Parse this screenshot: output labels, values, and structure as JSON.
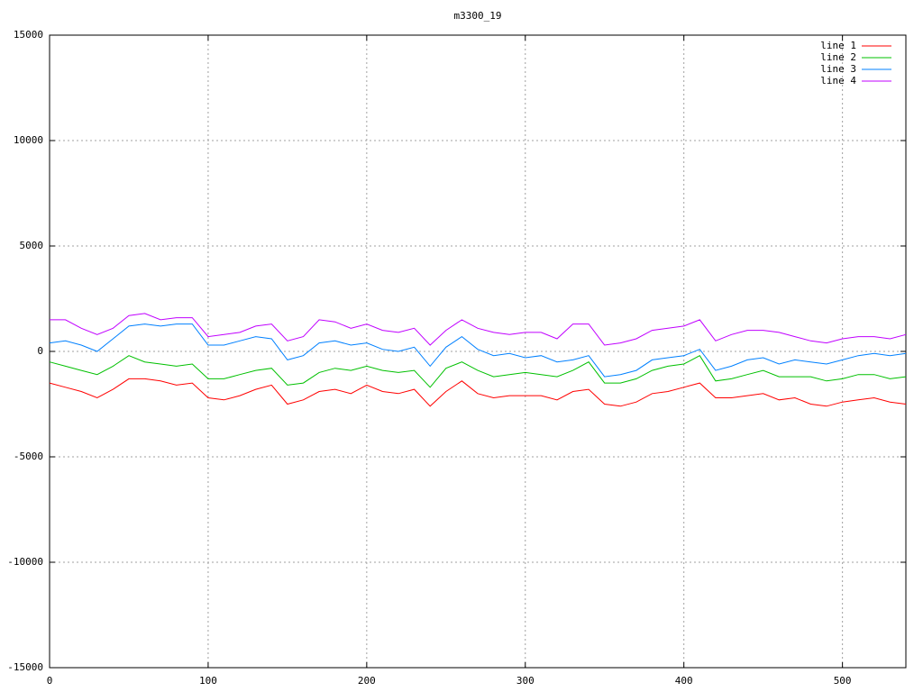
{
  "chart_data": {
    "type": "line",
    "title": "m3300_19",
    "x": [
      0,
      10,
      20,
      30,
      40,
      50,
      60,
      70,
      80,
      90,
      100,
      110,
      120,
      130,
      140,
      150,
      160,
      170,
      180,
      190,
      200,
      210,
      220,
      230,
      240,
      250,
      260,
      270,
      280,
      290,
      300,
      310,
      320,
      330,
      340,
      350,
      360,
      370,
      380,
      390,
      400,
      410,
      420,
      430,
      440,
      450,
      460,
      470,
      480,
      490,
      500,
      510,
      520,
      530,
      540
    ],
    "series": [
      {
        "name": "line 1",
        "color": "#ff0000",
        "values": [
          -1500,
          -1700,
          -1900,
          -2200,
          -1800,
          -1300,
          -1300,
          -1400,
          -1600,
          -1500,
          -2200,
          -2300,
          -2100,
          -1800,
          -1600,
          -2500,
          -2300,
          -1900,
          -1800,
          -2000,
          -1600,
          -1900,
          -2000,
          -1800,
          -2600,
          -1900,
          -1400,
          -2000,
          -2200,
          -2100,
          -2100,
          -2100,
          -2300,
          -1900,
          -1800,
          -2500,
          -2600,
          -2400,
          -2000,
          -1900,
          -1700,
          -1500,
          -2200,
          -2200,
          -2100,
          -2000,
          -2300,
          -2200,
          -2500,
          -2600,
          -2400,
          -2300,
          -2200,
          -2400,
          -2500
        ]
      },
      {
        "name": "line 2",
        "color": "#00c000",
        "values": [
          -500,
          -700,
          -900,
          -1100,
          -700,
          -200,
          -500,
          -600,
          -700,
          -600,
          -1300,
          -1300,
          -1100,
          -900,
          -800,
          -1600,
          -1500,
          -1000,
          -800,
          -900,
          -700,
          -900,
          -1000,
          -900,
          -1700,
          -800,
          -500,
          -900,
          -1200,
          -1100,
          -1000,
          -1100,
          -1200,
          -900,
          -500,
          -1500,
          -1500,
          -1300,
          -900,
          -700,
          -600,
          -200,
          -1400,
          -1300,
          -1100,
          -900,
          -1200,
          -1200,
          -1200,
          -1400,
          -1300,
          -1100,
          -1100,
          -1300,
          -1200
        ]
      },
      {
        "name": "line 3",
        "color": "#0080ff",
        "values": [
          400,
          500,
          300,
          0,
          600,
          1200,
          1300,
          1200,
          1300,
          1300,
          300,
          300,
          500,
          700,
          600,
          -400,
          -200,
          400,
          500,
          300,
          400,
          100,
          0,
          200,
          -700,
          200,
          700,
          100,
          -200,
          -100,
          -300,
          -200,
          -500,
          -400,
          -200,
          -1200,
          -1100,
          -900,
          -400,
          -300,
          -200,
          100,
          -900,
          -700,
          -400,
          -300,
          -600,
          -400,
          -500,
          -600,
          -400,
          -200,
          -100,
          -200,
          -100
        ]
      },
      {
        "name": "line 4",
        "color": "#c000ff",
        "values": [
          1500,
          1500,
          1100,
          800,
          1100,
          1700,
          1800,
          1500,
          1600,
          1600,
          700,
          800,
          900,
          1200,
          1300,
          500,
          700,
          1500,
          1400,
          1100,
          1300,
          1000,
          900,
          1100,
          300,
          1000,
          1500,
          1100,
          900,
          800,
          900,
          900,
          600,
          1300,
          1300,
          300,
          400,
          600,
          1000,
          1100,
          1200,
          1500,
          500,
          800,
          1000,
          1000,
          900,
          700,
          500,
          400,
          600,
          700,
          700,
          600,
          800
        ]
      }
    ],
    "xlim": [
      0,
      540
    ],
    "xticks": [
      0,
      100,
      200,
      300,
      400,
      500
    ],
    "ylim": [
      -15000,
      15000
    ],
    "yticks": [
      -15000,
      -10000,
      -5000,
      0,
      5000,
      10000,
      15000
    ],
    "grid": true,
    "legend": "top-right"
  }
}
